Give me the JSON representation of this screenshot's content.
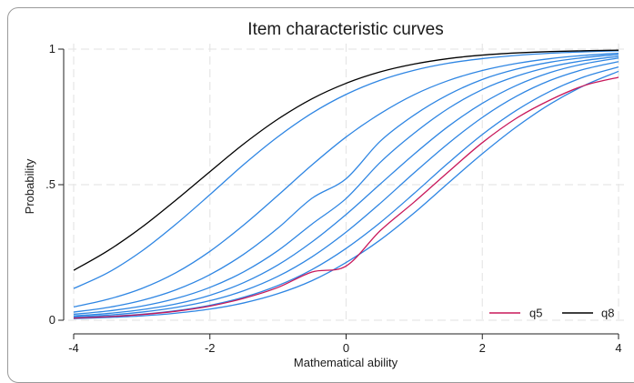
{
  "chart_data": {
    "type": "line",
    "title": "Item characteristic curves",
    "xlabel": "Mathematical ability",
    "ylabel": "Probability",
    "xlim": [
      -4,
      4
    ],
    "ylim": [
      0,
      1
    ],
    "xticks": [
      -4,
      -2,
      0,
      2,
      4
    ],
    "xtick_labels": [
      "-4",
      "-2",
      "0",
      "2",
      "4"
    ],
    "yticks": [
      0,
      0.5,
      1
    ],
    "ytick_labels": [
      "0",
      ".5",
      "1"
    ],
    "grid": true,
    "legend_position": "bottom-right",
    "legend": [
      "q5",
      "q8"
    ],
    "x": [
      -4,
      -3.5,
      -3,
      -2.5,
      -2,
      -1.5,
      -1,
      -0.5,
      0,
      0.5,
      1,
      1.5,
      2,
      2.5,
      3,
      3.5,
      4
    ],
    "series": [
      {
        "name": "q5",
        "color": "#c8185a",
        "values": [
          0.008,
          0.013,
          0.021,
          0.033,
          0.052,
          0.081,
          0.121,
          0.178,
          0.2,
          0.33,
          0.436,
          0.547,
          0.655,
          0.745,
          0.813,
          0.866,
          0.896
        ]
      },
      {
        "name": "q8",
        "color": "#000000",
        "values": [
          0.184,
          0.256,
          0.343,
          0.443,
          0.548,
          0.651,
          0.742,
          0.817,
          0.874,
          0.916,
          0.945,
          0.965,
          0.978,
          0.986,
          0.991,
          0.994,
          0.996
        ]
      },
      {
        "color": "#2f86e3",
        "values": [
          0.117,
          0.175,
          0.255,
          0.354,
          0.463,
          0.575,
          0.677,
          0.764,
          0.833,
          0.885,
          0.922,
          0.948,
          0.965,
          0.977,
          0.985,
          0.99,
          0.994
        ]
      },
      {
        "color": "#2f86e3",
        "values": [
          0.049,
          0.077,
          0.117,
          0.175,
          0.254,
          0.352,
          0.461,
          0.573,
          0.676,
          0.762,
          0.832,
          0.884,
          0.921,
          0.947,
          0.965,
          0.977,
          0.985
        ]
      },
      {
        "color": "#2f86e3",
        "values": [
          0.03,
          0.047,
          0.073,
          0.112,
          0.168,
          0.244,
          0.34,
          0.45,
          0.522,
          0.66,
          0.757,
          0.832,
          0.888,
          0.926,
          0.952,
          0.969,
          0.98
        ]
      },
      {
        "color": "#2f86e3",
        "values": [
          0.022,
          0.034,
          0.052,
          0.08,
          0.121,
          0.179,
          0.257,
          0.355,
          0.449,
          0.582,
          0.69,
          0.781,
          0.851,
          0.9,
          0.935,
          0.958,
          0.973
        ]
      },
      {
        "color": "#2f86e3",
        "values": [
          0.016,
          0.025,
          0.039,
          0.06,
          0.092,
          0.139,
          0.204,
          0.289,
          0.39,
          0.502,
          0.613,
          0.715,
          0.8,
          0.866,
          0.914,
          0.946,
          0.967
        ]
      },
      {
        "color": "#2f86e3",
        "values": [
          0.012,
          0.019,
          0.03,
          0.047,
          0.072,
          0.109,
          0.162,
          0.234,
          0.325,
          0.431,
          0.544,
          0.652,
          0.748,
          0.826,
          0.885,
          0.926,
          0.954
        ]
      },
      {
        "color": "#2f86e3",
        "values": [
          0.009,
          0.014,
          0.022,
          0.035,
          0.055,
          0.085,
          0.128,
          0.187,
          0.265,
          0.36,
          0.468,
          0.58,
          0.685,
          0.774,
          0.845,
          0.898,
          0.934
        ]
      },
      {
        "color": "#2f86e3",
        "values": [
          0.006,
          0.01,
          0.016,
          0.026,
          0.041,
          0.064,
          0.098,
          0.146,
          0.213,
          0.296,
          0.396,
          0.506,
          0.614,
          0.713,
          0.798,
          0.866,
          0.918
        ]
      }
    ]
  }
}
